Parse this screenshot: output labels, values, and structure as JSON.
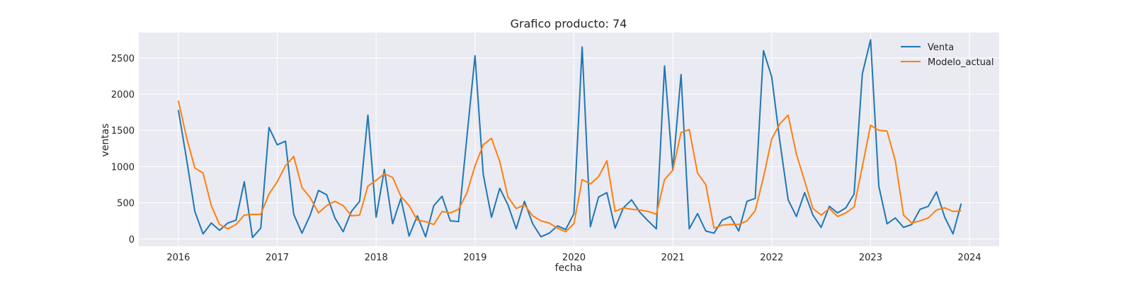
{
  "chart_data": {
    "type": "line",
    "title": "Grafico producto: 74",
    "xlabel": "fecha",
    "ylabel": "ventas",
    "xlim": [
      2015.6,
      2024.3
    ],
    "ylim": [
      -100,
      2850
    ],
    "xticks": [
      2016,
      2017,
      2018,
      2019,
      2020,
      2021,
      2022,
      2023,
      2024
    ],
    "xtick_labels": [
      "2016",
      "2017",
      "2018",
      "2019",
      "2020",
      "2021",
      "2022",
      "2023",
      "2024"
    ],
    "yticks": [
      0,
      500,
      1000,
      1500,
      2000,
      2500
    ],
    "ytick_labels": [
      "0",
      "500",
      "1000",
      "1500",
      "2000",
      "2500"
    ],
    "grid": true,
    "legend_position": "top-right",
    "x_start": 2016.0,
    "x_step": 0.08333,
    "series": [
      {
        "name": "Venta",
        "color": "#1f77b4",
        "values": [
          1780,
          1100,
          380,
          70,
          220,
          120,
          220,
          260,
          790,
          20,
          150,
          1540,
          1300,
          1350,
          340,
          80,
          330,
          670,
          610,
          290,
          100,
          380,
          520,
          1710,
          300,
          960,
          210,
          560,
          40,
          320,
          30,
          460,
          590,
          250,
          240,
          1390,
          2530,
          890,
          300,
          700,
          470,
          140,
          520,
          210,
          30,
          80,
          180,
          130,
          350,
          2650,
          170,
          580,
          640,
          150,
          430,
          540,
          370,
          250,
          140,
          2390,
          950,
          2270,
          140,
          350,
          110,
          80,
          260,
          310,
          110,
          520,
          560,
          2600,
          2240,
          1340,
          540,
          310,
          640,
          330,
          160,
          450,
          360,
          430,
          620,
          2280,
          2750,
          730,
          210,
          290,
          160,
          200,
          410,
          450,
          650,
          300,
          70,
          490
        ]
      },
      {
        "name": "Modelo_actual",
        "color": "#ff7f0e",
        "values": [
          1910,
          1400,
          980,
          910,
          460,
          200,
          140,
          200,
          330,
          340,
          340,
          620,
          790,
          1010,
          1140,
          710,
          570,
          360,
          460,
          520,
          460,
          320,
          330,
          730,
          810,
          900,
          850,
          590,
          460,
          260,
          240,
          200,
          380,
          360,
          410,
          630,
          1010,
          1300,
          1390,
          1070,
          580,
          420,
          470,
          320,
          250,
          220,
          150,
          100,
          210,
          820,
          760,
          860,
          1080,
          380,
          430,
          410,
          400,
          380,
          340,
          820,
          950,
          1470,
          1510,
          910,
          750,
          150,
          190,
          200,
          200,
          250,
          390,
          850,
          1380,
          1590,
          1710,
          1170,
          800,
          420,
          330,
          420,
          310,
          360,
          440,
          1000,
          1570,
          1500,
          1490,
          1080,
          330,
          220,
          250,
          290,
          400,
          430,
          380,
          390
        ]
      }
    ]
  }
}
